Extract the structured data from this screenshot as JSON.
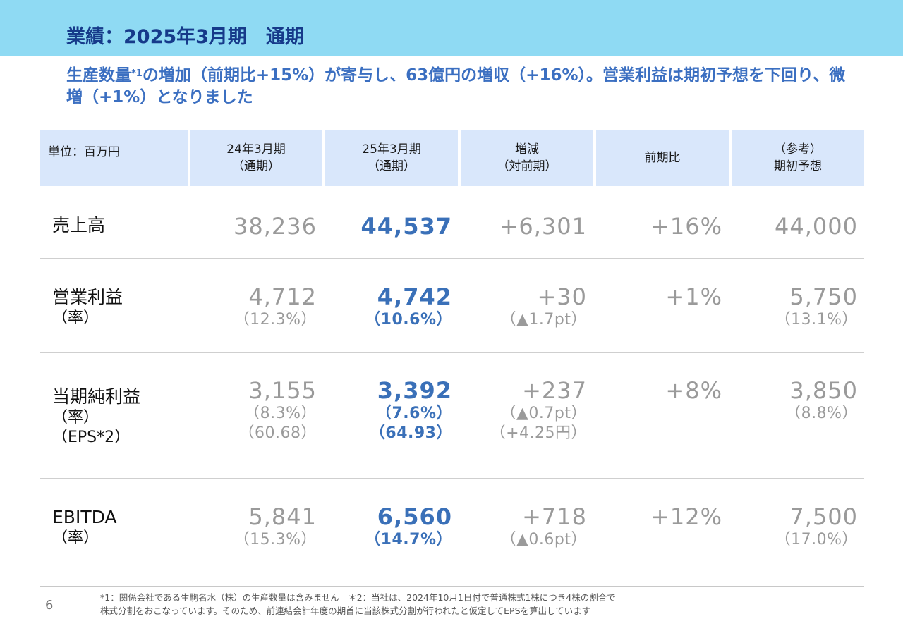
{
  "title": "業績：2025年3月期　通期",
  "subtitle": {
    "part1": "生産数量",
    "note_mark": "*1",
    "part2": "の増加（前期比+15%）が寄与し、63億円の増収（+16%）。営業利益は期初予想を下回り、微増（+1%）となりました"
  },
  "table": {
    "headers": {
      "unit": "単位：百万円",
      "fy24_line1": "24年3月期",
      "fy24_line2": "（通期）",
      "fy25_line1": "25年3月期",
      "fy25_line2": "（通期）",
      "change_line1": "増減",
      "change_line2": "（対前期）",
      "yoy": "前期比",
      "forecast_line1": "（参考）",
      "forecast_line2": "期初予想"
    },
    "rows": {
      "sales": {
        "label": "売上高",
        "fy24": "38,236",
        "fy25": "44,537",
        "change": "+6,301",
        "yoy": "+16%",
        "forecast": "44,000"
      },
      "op": {
        "label": "営業利益",
        "sub1": "（率）",
        "fy24": "4,712",
        "fy24_rate": "（12.3%）",
        "fy25": "4,742",
        "fy25_rate": "（10.6%）",
        "change": "+30",
        "change_rate": "（▲1.7pt）",
        "yoy": "+1%",
        "forecast": "5,750",
        "forecast_rate": "（13.1%）"
      },
      "net": {
        "label": "当期純利益",
        "sub1": "（率）",
        "sub2": "（EPS*2）",
        "fy24": "3,155",
        "fy24_rate": "（8.3%）",
        "fy24_eps": "（60.68）",
        "fy25": "3,392",
        "fy25_rate": "（7.6%）",
        "fy25_eps": "（64.93）",
        "change": "+237",
        "change_rate": "（▲0.7pt）",
        "change_eps": "（+4.25円）",
        "yoy": "+8%",
        "forecast": "3,850",
        "forecast_rate": "（8.8%）"
      },
      "ebitda": {
        "label": "EBITDA",
        "sub1": "（率）",
        "fy24": "5,841",
        "fy24_rate": "（15.3%）",
        "fy25": "6,560",
        "fy25_rate": "（14.7%）",
        "change": "+718",
        "change_rate": "（▲0.6pt）",
        "yoy": "+12%",
        "forecast": "7,500",
        "forecast_rate": "（17.0%）"
      }
    }
  },
  "page_number": "6",
  "footnote": {
    "line1": "*1：関係会社である生駒名水（株）の生産数量は含みません　＊2：当社は、2024年10月1日付で普通株式1株につき4株の割合で",
    "line2": "株式分割をおこなっています。そのため、前連結会計年度の期首に当該株式分割が行われたと仮定してEPSを算出しています"
  },
  "colors": {
    "banner": "#8fdaf3",
    "title": "#163a8a",
    "subtitle": "#3b6fc1",
    "header_bg": "#d9e7fb",
    "current_year_values": "#3a70b8",
    "other_values": "#9a9a9a"
  }
}
